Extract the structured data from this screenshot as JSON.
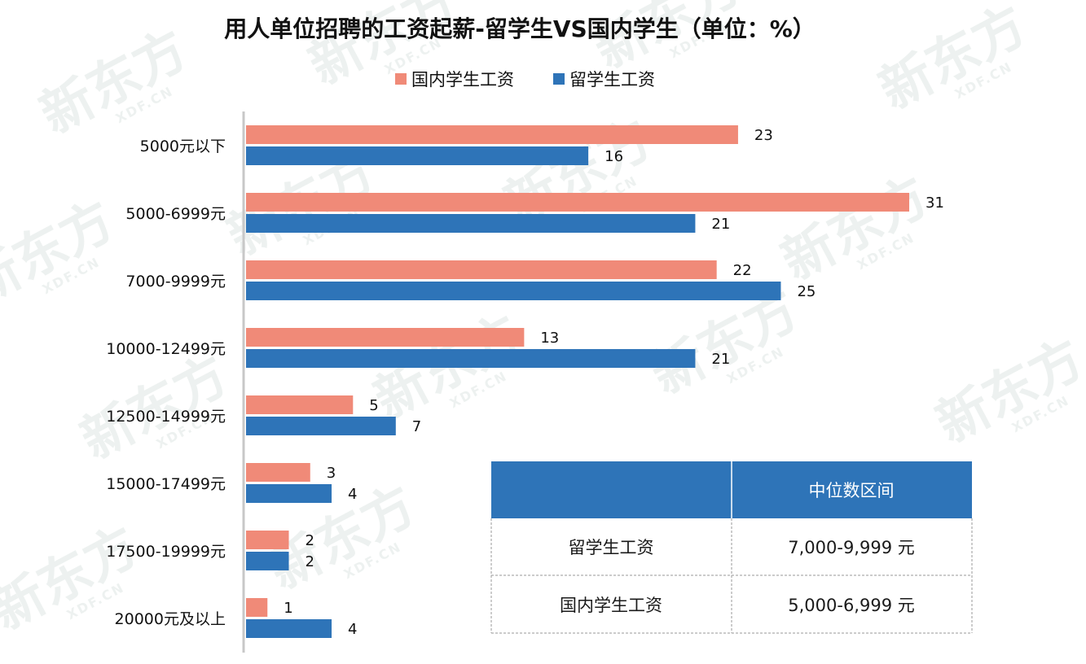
{
  "watermark": {
    "brand": "新东方",
    "site": "XDF.CN"
  },
  "colors": {
    "domestic": "#f08a78",
    "abroad": "#2e74b8",
    "table_header": "#2e74b8",
    "axis": "#c8c8c8"
  },
  "chart_data": {
    "type": "bar",
    "orientation": "horizontal",
    "title": "用人单位招聘的工资起薪-留学生VS国内学生（单位：%）",
    "legend_position": "top-center",
    "categories": [
      "5000元以下",
      "5000-6999元",
      "7000-9999元",
      "10000-12499元",
      "12500-14999元",
      "15000-17499元",
      "17500-19999元",
      "20000元及以上"
    ],
    "series": [
      {
        "name": "国内学生工资",
        "color": "#f08a78",
        "values": [
          23,
          31,
          22,
          13,
          5,
          3,
          2,
          1
        ],
        "labels": [
          "23",
          "31",
          "22",
          "13",
          "5",
          "3",
          "2",
          "1"
        ]
      },
      {
        "name": "留学生工资",
        "color": "#2e74b8",
        "values": [
          16,
          21,
          25,
          21,
          7,
          4,
          2,
          4
        ],
        "labels": [
          "16",
          "21",
          "25",
          "21",
          "7",
          "4",
          "2",
          "4"
        ]
      }
    ],
    "xlim": [
      0,
      31
    ],
    "grid": false
  },
  "median_table": {
    "header": [
      "",
      "中位数区间"
    ],
    "rows": [
      [
        "留学生工资",
        "7,000-9,999 元"
      ],
      [
        "国内学生工资",
        "5,000-6,999 元"
      ]
    ]
  }
}
